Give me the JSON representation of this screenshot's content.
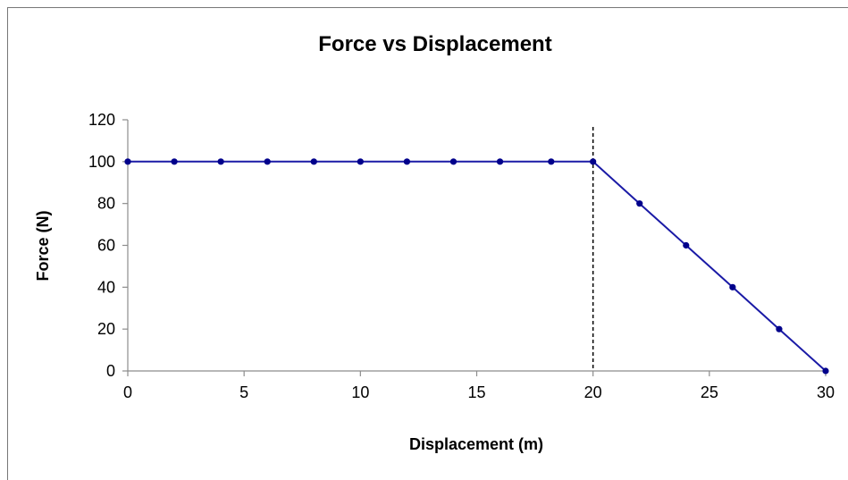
{
  "chart_data": {
    "type": "line",
    "title": "Force vs Displacement",
    "xlabel": "Displacement (m)",
    "ylabel": "Force (N)",
    "xlim": [
      0,
      30
    ],
    "ylim": [
      0,
      120
    ],
    "x_ticks": [
      "0",
      "5",
      "10",
      "15",
      "20",
      "25",
      "30"
    ],
    "y_ticks": [
      "0",
      "20",
      "40",
      "60",
      "80",
      "100",
      "120"
    ],
    "grid": false,
    "legend": "none",
    "series": [
      {
        "color": "#1a1aa6",
        "marker_color": "#00008b",
        "x": [
          0,
          2,
          4,
          6,
          8,
          10,
          12,
          14,
          16,
          18.2,
          20,
          22,
          24,
          26,
          28,
          30
        ],
        "y": [
          100,
          100,
          100,
          100,
          100,
          100,
          100,
          100,
          100,
          100,
          100,
          80,
          60,
          40,
          20,
          0
        ]
      }
    ],
    "annotations": [
      {
        "type": "vertical-dashed-line",
        "x": 20,
        "color": "#000000"
      }
    ]
  }
}
